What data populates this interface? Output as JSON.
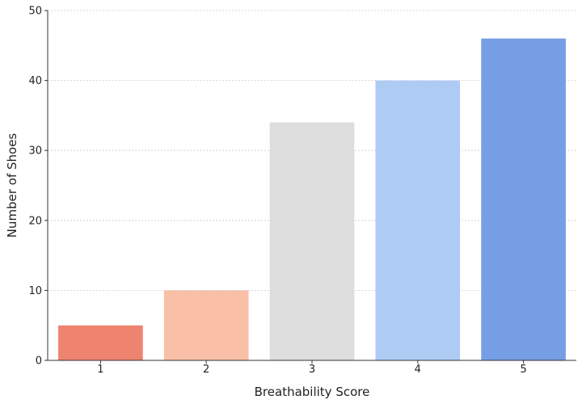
{
  "chart_data": {
    "type": "bar",
    "title": "",
    "xlabel": "Breathability Score",
    "ylabel": "Number of Shoes",
    "categories": [
      "1",
      "2",
      "3",
      "4",
      "5"
    ],
    "values": [
      5,
      10,
      34,
      40,
      46
    ],
    "colors": [
      "#ee8470",
      "#f9bfa7",
      "#dddddd",
      "#aecbf3",
      "#769ee5"
    ],
    "ylim": [
      0,
      50
    ],
    "yticks": [
      0,
      10,
      20,
      30,
      40,
      50
    ],
    "grid": "horizontal dotted"
  }
}
